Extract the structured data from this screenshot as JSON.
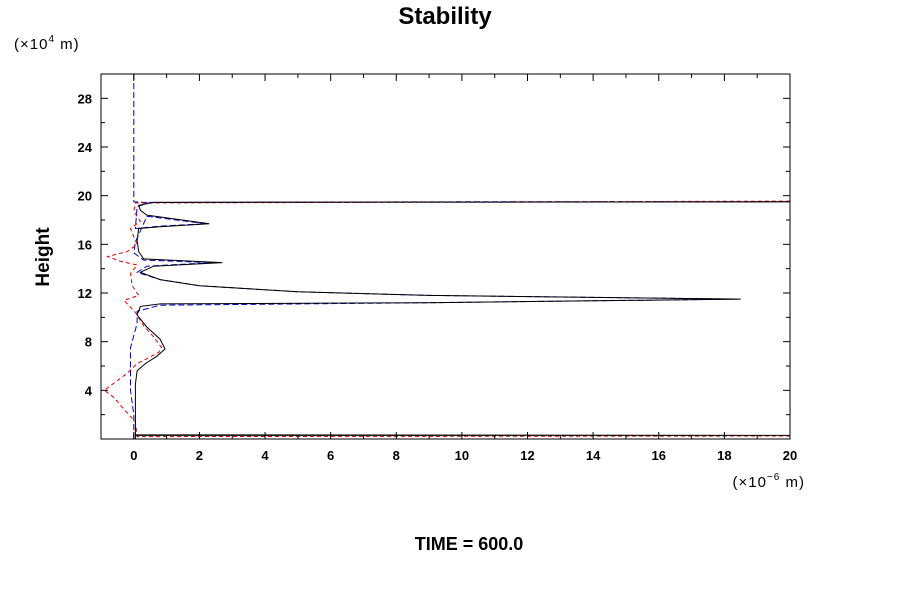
{
  "chart_data": {
    "type": "line",
    "title": "Stability",
    "ylabel": "Height",
    "x_unit": {
      "base": "(×10",
      "exp": "−6",
      "tail": " m)"
    },
    "y_unit": {
      "base": "(×10",
      "exp": "4",
      "tail": " m)"
    },
    "footer": "TIME = 600.0",
    "xlim": [
      -1,
      20
    ],
    "ylim": [
      0,
      30
    ],
    "x_ticks": [
      0,
      2,
      4,
      6,
      8,
      10,
      12,
      14,
      16,
      18,
      20
    ],
    "y_ticks": [
      4,
      8,
      12,
      16,
      20,
      24,
      28
    ],
    "grid": false,
    "legend": "none",
    "series": [
      {
        "color": "#000000",
        "dash": "solid",
        "points": [
          [
            0.05,
            0
          ],
          [
            0.05,
            0.3
          ],
          [
            20,
            0.3
          ],
          [
            0.05,
            0.35
          ],
          [
            0.05,
            4.5
          ],
          [
            0.1,
            5.6
          ],
          [
            0.35,
            6.2
          ],
          [
            0.7,
            6.8
          ],
          [
            0.95,
            7.4
          ],
          [
            0.8,
            8.2
          ],
          [
            0.4,
            9.2
          ],
          [
            0.1,
            10.2
          ],
          [
            0.2,
            10.9
          ],
          [
            0.8,
            11.1
          ],
          [
            9,
            11.2
          ],
          [
            18.5,
            11.5
          ],
          [
            9,
            11.8
          ],
          [
            5,
            12.1
          ],
          [
            2,
            12.6
          ],
          [
            0.8,
            13.1
          ],
          [
            0.2,
            13.7
          ],
          [
            0.6,
            14.2
          ],
          [
            2.7,
            14.5
          ],
          [
            0.3,
            14.8
          ],
          [
            0.15,
            15.4
          ],
          [
            0.1,
            16.3
          ],
          [
            0.15,
            17.3
          ],
          [
            0.8,
            17.45
          ],
          [
            2.3,
            17.7
          ],
          [
            0.4,
            18.4
          ],
          [
            0.2,
            18.8
          ],
          [
            0.15,
            19.2
          ],
          [
            0.6,
            19.45
          ],
          [
            20,
            19.5
          ]
        ]
      },
      {
        "color": "#0000cc",
        "dash": "long",
        "points": [
          [
            0,
            30
          ],
          [
            0,
            19.5
          ],
          [
            0.3,
            19.45
          ],
          [
            10,
            19.5
          ],
          [
            20,
            19.5
          ],
          [
            0.5,
            19.45
          ],
          [
            0.1,
            19.1
          ],
          [
            0.05,
            17.3
          ],
          [
            0.8,
            17.5
          ],
          [
            2.2,
            17.7
          ],
          [
            0.4,
            18.3
          ],
          [
            0.05,
            16.2
          ],
          [
            0,
            15.3
          ],
          [
            0.3,
            14.7
          ],
          [
            2.4,
            14.5
          ],
          [
            0.4,
            14.2
          ],
          [
            0.1,
            13.7
          ],
          [
            0.8,
            13.1
          ],
          [
            2,
            12.6
          ],
          [
            5,
            12.1
          ],
          [
            9,
            11.8
          ],
          [
            18.4,
            11.5
          ],
          [
            9,
            11.2
          ],
          [
            0.8,
            11.0
          ],
          [
            0.1,
            10.5
          ],
          [
            0.1,
            9.5
          ],
          [
            -0.1,
            7.5
          ],
          [
            -0.1,
            6
          ],
          [
            -0.1,
            4
          ],
          [
            0,
            2
          ],
          [
            0,
            0
          ]
        ]
      },
      {
        "color": "#dd0000",
        "dash": "short",
        "points": [
          [
            20,
            0.25
          ],
          [
            0.1,
            0.2
          ],
          [
            0.05,
            1.4
          ],
          [
            -0.35,
            2.6
          ],
          [
            -0.6,
            3.4
          ],
          [
            -0.9,
            4.0
          ],
          [
            -0.6,
            4.6
          ],
          [
            -0.2,
            5.4
          ],
          [
            0.1,
            6.2
          ],
          [
            0.4,
            6.6
          ],
          [
            0.75,
            7.1
          ],
          [
            0.85,
            7.5
          ],
          [
            0.6,
            8.4
          ],
          [
            0.3,
            9.3
          ],
          [
            0.05,
            10.4
          ],
          [
            -0.3,
            11.4
          ],
          [
            0.15,
            11.8
          ],
          [
            -0.05,
            12.6
          ],
          [
            -0.1,
            13.6
          ],
          [
            0.1,
            14.3
          ],
          [
            -0.4,
            14.6
          ],
          [
            -0.8,
            15.0
          ],
          [
            -0.2,
            15.4
          ],
          [
            0.1,
            16.0
          ],
          [
            0,
            16.6
          ],
          [
            -0.1,
            17.3
          ],
          [
            0.2,
            17.9
          ],
          [
            0,
            18.7
          ],
          [
            0.05,
            19.4
          ],
          [
            20,
            19.55
          ]
        ]
      }
    ]
  }
}
